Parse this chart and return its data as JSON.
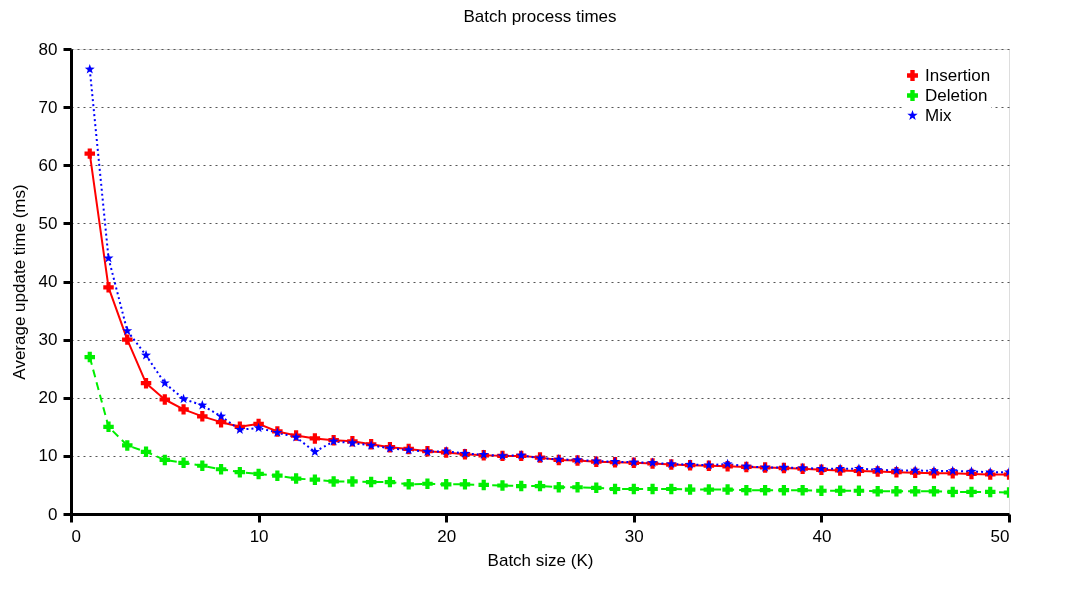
{
  "chart_data": {
    "type": "line",
    "title": "Batch process times",
    "xlabel": "Batch size (K)",
    "ylabel": "Average update time (ms)",
    "x": [
      1,
      2,
      3,
      4,
      5,
      6,
      7,
      8,
      9,
      10,
      11,
      12,
      13,
      14,
      15,
      16,
      17,
      18,
      19,
      20,
      21,
      22,
      23,
      24,
      25,
      26,
      27,
      28,
      29,
      30,
      31,
      32,
      33,
      34,
      35,
      36,
      37,
      38,
      39,
      40,
      41,
      42,
      43,
      44,
      45,
      46,
      47,
      48,
      49,
      50
    ],
    "series": [
      {
        "name": "Insertion",
        "color": "#ff0000",
        "marker": "cross",
        "line_style": "solid",
        "values": [
          62,
          39,
          30,
          22.5,
          19.7,
          18,
          16.8,
          15.8,
          15,
          15.5,
          14.2,
          13.5,
          13,
          12.7,
          12.5,
          12,
          11.5,
          11.2,
          10.8,
          10.6,
          10.3,
          10.1,
          10,
          10,
          9.7,
          9.3,
          9.2,
          9,
          8.9,
          8.8,
          8.7,
          8.5,
          8.4,
          8.3,
          8.2,
          8.1,
          8,
          7.9,
          7.8,
          7.6,
          7.5,
          7.4,
          7.3,
          7.2,
          7.1,
          7,
          7,
          6.9,
          6.8,
          6.8
        ]
      },
      {
        "name": "Deletion",
        "color": "#00ee00",
        "marker": "cross",
        "line_style": "dashed",
        "values": [
          27,
          15,
          11.8,
          10.7,
          9.3,
          8.8,
          8.3,
          7.7,
          7.2,
          6.9,
          6.6,
          6.1,
          5.9,
          5.6,
          5.6,
          5.5,
          5.5,
          5.1,
          5.2,
          5.1,
          5.1,
          5,
          4.9,
          4.8,
          4.8,
          4.6,
          4.6,
          4.5,
          4.3,
          4.3,
          4.3,
          4.3,
          4.2,
          4.2,
          4.2,
          4.1,
          4.1,
          4.1,
          4.1,
          4,
          4,
          4,
          3.9,
          3.9,
          3.9,
          3.9,
          3.8,
          3.8,
          3.8,
          3.7
        ]
      },
      {
        "name": "Mix",
        "color": "#0000ff",
        "marker": "star",
        "line_style": "dotted",
        "values": [
          76.5,
          44,
          31.5,
          27.3,
          22.5,
          19.8,
          18.7,
          16.8,
          14.5,
          14.8,
          14,
          13.2,
          10.7,
          12.5,
          12.2,
          11.8,
          11.3,
          11,
          10.7,
          10.8,
          10.4,
          10.2,
          10,
          10.1,
          9.6,
          9.4,
          9.3,
          9.1,
          9,
          8.9,
          8.8,
          8.6,
          8.5,
          8.4,
          8.6,
          8.2,
          8,
          8,
          7.9,
          7.8,
          7.8,
          7.8,
          7.6,
          7.5,
          7.5,
          7.4,
          7.4,
          7.3,
          7.2,
          7.2
        ]
      }
    ],
    "xlim": [
      0,
      50
    ],
    "xticks": [
      0,
      10,
      20,
      30,
      40,
      50
    ],
    "ylim": [
      0,
      80
    ],
    "yticks": [
      0,
      10,
      20,
      30,
      40,
      50,
      60,
      70,
      80
    ],
    "grid": "y",
    "legend": "top right"
  }
}
